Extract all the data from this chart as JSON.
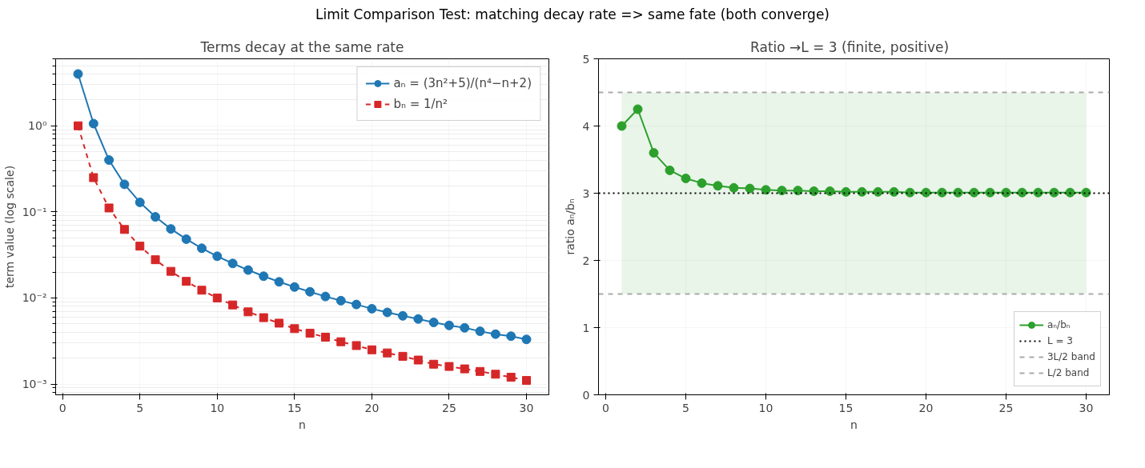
{
  "chart_data": [
    {
      "type": "line",
      "title": "Terms decay at the same rate",
      "xlabel": "n",
      "ylabel": "term value (log scale)",
      "annotations": [
        "Limit Comparison Test: matching decay rate => same fate (both converge)"
      ],
      "x": [
        1,
        2,
        3,
        4,
        5,
        6,
        7,
        8,
        9,
        10,
        11,
        12,
        13,
        14,
        15,
        16,
        17,
        18,
        19,
        20,
        21,
        22,
        23,
        24,
        25,
        26,
        27,
        28,
        29,
        30
      ],
      "series": [
        {
          "name": "aₙ = (3n²+5)/(n⁴−n+2)",
          "color": "#1f77b4",
          "marker": "circle",
          "line_style": "solid",
          "values": [
            4,
            1.06,
            0.4,
            0.209,
            0.129,
            0.0875,
            0.0634,
            0.0482,
            0.0378,
            0.0305,
            0.0252,
            0.0211,
            0.0179,
            0.0154,
            0.0134,
            0.0118,
            0.0104,
            0.0093,
            0.0084,
            0.0075,
            0.0068,
            0.0062,
            0.0057,
            0.0052,
            0.0048,
            0.0045,
            0.0041,
            0.0038,
            0.0036,
            0.0033
          ]
        },
        {
          "name": "bₙ = 1/n²",
          "color": "#d62728",
          "marker": "square",
          "line_style": "dashed",
          "values": [
            1,
            0.25,
            0.111,
            0.0625,
            0.04,
            0.0278,
            0.0204,
            0.0156,
            0.0123,
            0.01,
            0.0083,
            0.0069,
            0.0059,
            0.0051,
            0.0044,
            0.0039,
            0.0035,
            0.0031,
            0.0028,
            0.0025,
            0.0023,
            0.0021,
            0.0019,
            0.0017,
            0.0016,
            0.0015,
            0.0014,
            0.0013,
            0.0012,
            0.0011
          ]
        }
      ],
      "log": "y",
      "xlim": [
        -0.45,
        31.45
      ],
      "xticks": [
        0,
        5,
        10,
        15,
        20,
        25,
        30
      ],
      "ylim": [
        0.00075,
        6
      ],
      "yticks": [
        {
          "value": 0.001,
          "label": "10⁻³"
        },
        {
          "value": 0.01,
          "label": "10⁻²"
        },
        {
          "value": 0.1,
          "label": "10⁻¹"
        },
        {
          "value": 1,
          "label": "10⁰"
        }
      ],
      "grid": true,
      "legend": "top right"
    },
    {
      "type": "line",
      "title": "Ratio  →L = 3  (finite, positive)",
      "xlabel": "n",
      "ylabel": "ratio aₙ/bₙ",
      "x": [
        1,
        2,
        3,
        4,
        5,
        6,
        7,
        8,
        9,
        10,
        11,
        12,
        13,
        14,
        15,
        16,
        17,
        18,
        19,
        20,
        21,
        22,
        23,
        24,
        25,
        26,
        27,
        28,
        29,
        30
      ],
      "series": [
        {
          "name": "aₙ/bₙ",
          "color": "#2ca02c",
          "marker": "circle",
          "line_style": "solid",
          "values": [
            4,
            4.25,
            3.6,
            3.34,
            3.22,
            3.15,
            3.11,
            3.08,
            3.07,
            3.05,
            3.04,
            3.04,
            3.03,
            3.03,
            3.02,
            3.02,
            3.02,
            3.02,
            3.01,
            3.01,
            3.01,
            3.01,
            3.01,
            3.01,
            3.01,
            3.01,
            3.01,
            3.01,
            3.01,
            3.01
          ]
        }
      ],
      "ref_lines": [
        {
          "axis": "y",
          "value": 3,
          "label": "L = 3",
          "color": "#000000",
          "line_style": "dotted"
        },
        {
          "axis": "y",
          "value": 4.5,
          "label": "3L/2 band",
          "color": "#aaaaaa",
          "line_style": "dashed"
        },
        {
          "axis": "y",
          "value": 1.5,
          "label": "L/2 band",
          "color": "#aaaaaa",
          "line_style": "dashed"
        }
      ],
      "bands": [
        {
          "axis": "y",
          "from": 1.5,
          "to": 4.5,
          "color": "#2ca02c"
        }
      ],
      "xlim": [
        -0.45,
        31.45
      ],
      "xticks": [
        0,
        5,
        10,
        15,
        20,
        25,
        30
      ],
      "ylim": [
        0,
        5
      ],
      "yticks": [
        0,
        1,
        2,
        3,
        4,
        5
      ],
      "grid": true,
      "legend": "bottom right"
    }
  ]
}
